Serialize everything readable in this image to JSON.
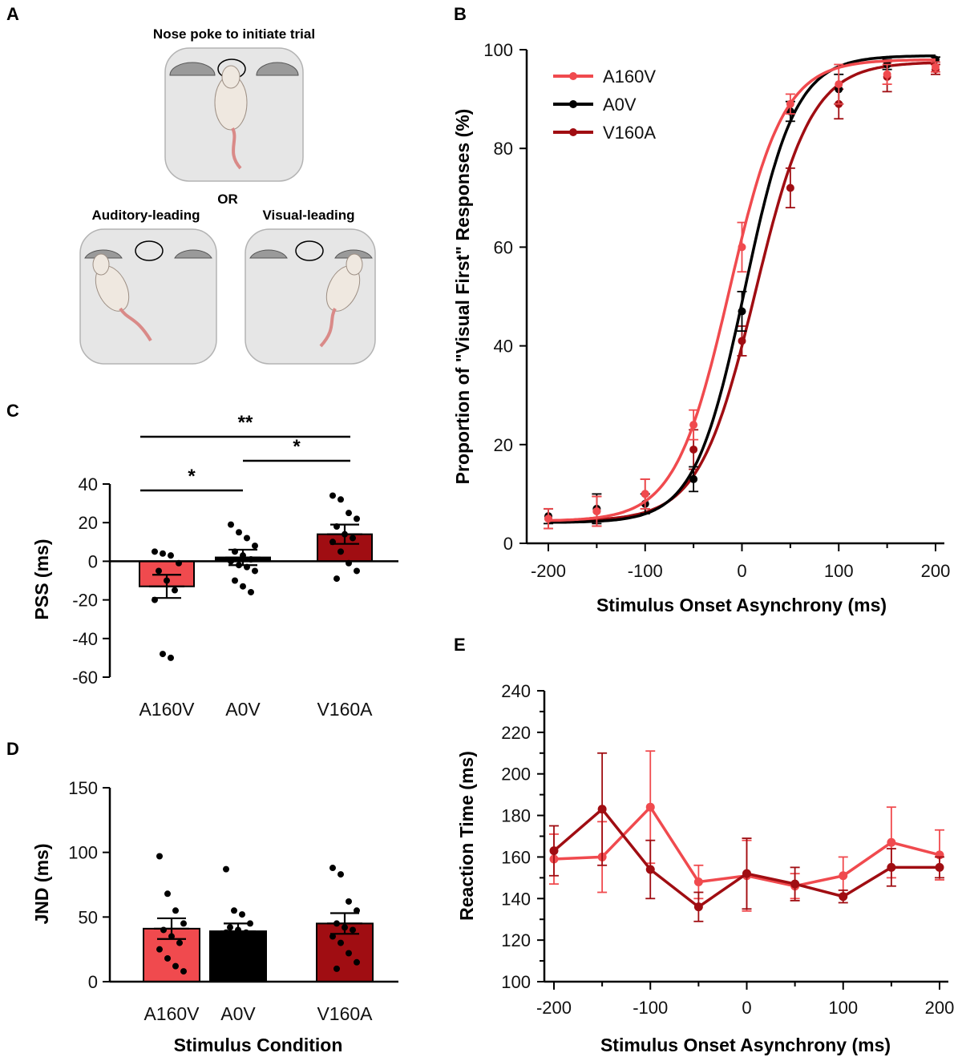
{
  "colors": {
    "a160v": "#f04a4e",
    "a0v": "#000000",
    "v160a": "#a00d12",
    "box": "#e6e6e6",
    "box_stroke": "#b3b3b3",
    "port": "#9a9a9a",
    "rat": "#efe8e0",
    "tail": "#d98a88"
  },
  "panel_letters": {
    "A": "A",
    "B": "B",
    "C": "C",
    "D": "D",
    "E": "E"
  },
  "panel_a": {
    "top_title": "Nose poke to initiate trial",
    "or_text": "OR",
    "left_title": "Auditory-leading",
    "right_title": "Visual-leading"
  },
  "chart_data": [
    {
      "id": "B",
      "type": "line",
      "xlabel": "Stimulus Onset Asynchrony (ms)",
      "ylabel": "Proportion of \"Visual First\" Responses (%)",
      "xlim": [
        -200,
        200
      ],
      "ylim": [
        0,
        100
      ],
      "xticks": [
        "-200",
        "-100",
        "0",
        "100",
        "200"
      ],
      "yticks": [
        "0",
        "20",
        "40",
        "60",
        "80",
        "100"
      ],
      "legend_position": "top-left",
      "x": [
        -200,
        -150,
        -100,
        -50,
        0,
        50,
        100,
        150,
        200
      ],
      "series": [
        {
          "name": "A160V",
          "color": "#f04a4e",
          "values": [
            5,
            6.5,
            10,
            24,
            60,
            89,
            93,
            95,
            96.5
          ],
          "err": [
            2,
            3,
            3,
            3,
            5,
            2,
            4,
            2,
            1
          ],
          "fit": {
            "pss": -13,
            "slope": 28,
            "lo": 4.5,
            "hi": 98
          }
        },
        {
          "name": "A0V",
          "color": "#000000",
          "values": [
            5.5,
            7,
            8,
            13,
            47,
            87.5,
            92,
            97,
            98
          ],
          "err": [
            1.5,
            3,
            2,
            2.5,
            4,
            2,
            3,
            1,
            0.5
          ],
          "fit": {
            "pss": 3,
            "slope": 26,
            "lo": 4.2,
            "hi": 98.8
          }
        },
        {
          "name": "V160A",
          "color": "#a00d12",
          "values": [
            5,
            6.5,
            10,
            19,
            41,
            72,
            89,
            94.5,
            96
          ],
          "err": [
            2,
            3,
            3,
            4,
            3,
            4,
            3,
            3,
            1
          ],
          "fit": {
            "pss": 14,
            "slope": 29,
            "lo": 4.5,
            "hi": 97.5
          }
        }
      ]
    },
    {
      "id": "C",
      "type": "bar",
      "ylabel": "PSS (ms)",
      "ylim": [
        -60,
        40
      ],
      "yticks": [
        "-60",
        "-40",
        "-20",
        "0",
        "20",
        "40"
      ],
      "categories": [
        "A160V",
        "A0V",
        "V160A"
      ],
      "values": [
        -13,
        2,
        14
      ],
      "sem": [
        6,
        4,
        5
      ],
      "points": [
        [
          5,
          4,
          3,
          -1,
          -5,
          -10,
          -15,
          -20,
          -48,
          -50
        ],
        [
          19,
          15,
          12,
          8,
          5,
          3,
          1,
          0,
          -2,
          -3,
          -5,
          -10,
          -13,
          -16
        ],
        [
          34,
          32,
          25,
          22,
          18,
          14,
          12,
          10,
          5,
          -1,
          -5,
          -9
        ]
      ],
      "significance": [
        {
          "from": "A160V",
          "to": "V160A",
          "label": "**"
        },
        {
          "from": "A0V",
          "to": "V160A",
          "label": "*"
        },
        {
          "from": "A160V",
          "to": "A0V",
          "label": "*"
        }
      ]
    },
    {
      "id": "D",
      "type": "bar",
      "xlabel": "Stimulus Condition",
      "ylabel": "JND (ms)",
      "ylim": [
        0,
        150
      ],
      "yticks": [
        "0",
        "50",
        "100",
        "150"
      ],
      "categories": [
        "A160V",
        "A0V",
        "V160A"
      ],
      "values": [
        41,
        39,
        45
      ],
      "sem": [
        8,
        6,
        8
      ],
      "points": [
        [
          97,
          68,
          55,
          45,
          40,
          35,
          30,
          25,
          18,
          12,
          8
        ],
        [
          87,
          55,
          52,
          45,
          42,
          40,
          38,
          38,
          36,
          35
        ],
        [
          88,
          83,
          62,
          55,
          45,
          42,
          40,
          35,
          30,
          22,
          15,
          10
        ]
      ]
    },
    {
      "id": "E",
      "type": "line",
      "xlabel": "Stimulus Onset Asynchrony (ms)",
      "ylabel": "Reaction Time (ms)",
      "xlim": [
        -200,
        200
      ],
      "ylim": [
        100,
        240
      ],
      "xticks": [
        "-200",
        "-100",
        "0",
        "100",
        "200"
      ],
      "yticks": [
        "100",
        "120",
        "140",
        "160",
        "180",
        "200",
        "220",
        "240"
      ],
      "x": [
        -200,
        -150,
        -100,
        -50,
        0,
        50,
        100,
        150,
        200
      ],
      "series": [
        {
          "name": "A160V",
          "color": "#f04a4e",
          "values": [
            159,
            160,
            184,
            148,
            151,
            146,
            151,
            167,
            161
          ],
          "err": [
            12,
            17,
            27,
            8,
            17,
            6,
            9,
            17,
            12
          ]
        },
        {
          "name": "V160A",
          "color": "#a00d12",
          "values": [
            163,
            183,
            154,
            136,
            152,
            147,
            141,
            155,
            155
          ],
          "err": [
            12,
            27,
            14,
            7,
            17,
            8,
            3,
            9,
            5
          ]
        }
      ]
    }
  ]
}
